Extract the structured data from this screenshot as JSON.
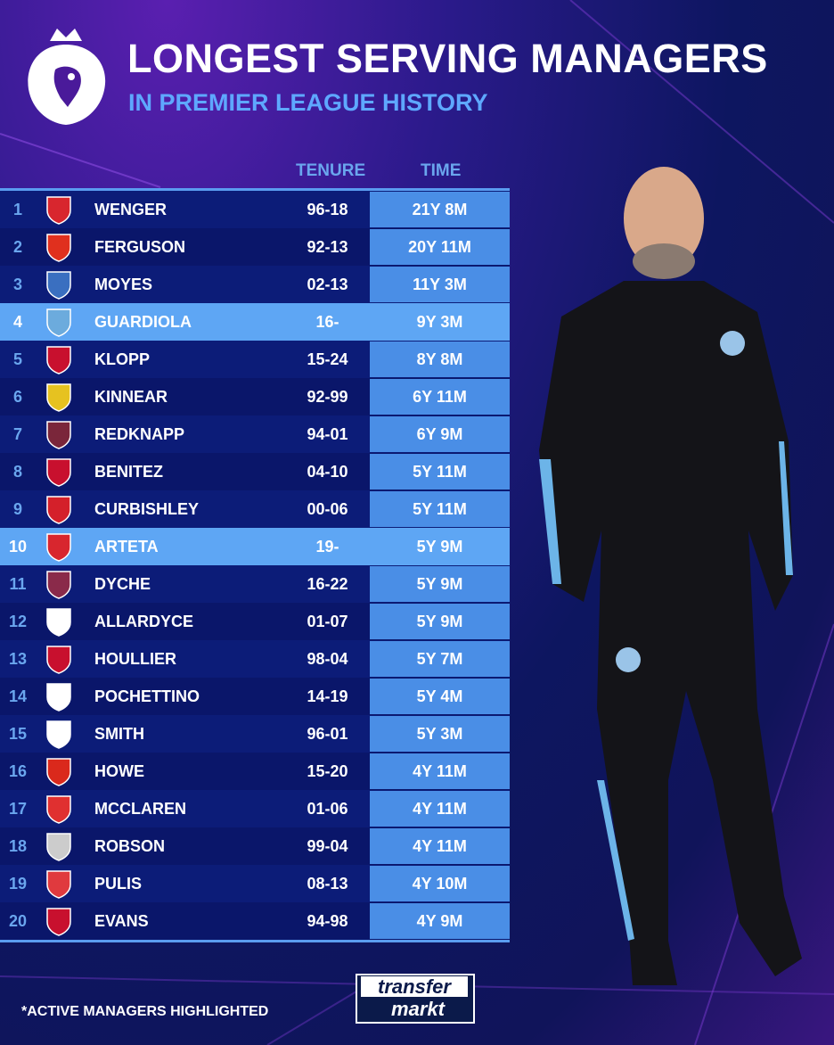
{
  "header": {
    "title": "LONGEST SERVING MANAGERS",
    "subtitle": "IN PREMIER LEAGUE HISTORY"
  },
  "columns": {
    "tenure": "TENURE",
    "time": "TIME"
  },
  "colors": {
    "accent": "#5ea8ff",
    "active_row": "#5ea6f4",
    "time_cell": "#4a8ee6",
    "row_dark": "#0c1c78"
  },
  "rows": [
    {
      "rank": "1",
      "name": "WENGER",
      "tenure": "96-18",
      "time": "21Y 8M",
      "crest": "arsenal-crest",
      "crest_color": "#d8262e",
      "active": false
    },
    {
      "rank": "2",
      "name": "FERGUSON",
      "tenure": "92-13",
      "time": "20Y 11M",
      "crest": "man-utd-crest",
      "crest_color": "#e0301e",
      "active": false
    },
    {
      "rank": "3",
      "name": "MOYES",
      "tenure": "02-13",
      "time": "11Y 3M",
      "crest": "everton-crest",
      "crest_color": "#3a6fc0",
      "active": false
    },
    {
      "rank": "4",
      "name": "GUARDIOLA",
      "tenure": "16-",
      "time": "9Y 3M",
      "crest": "man-city-crest",
      "crest_color": "#6cabdd",
      "active": true
    },
    {
      "rank": "5",
      "name": "KLOPP",
      "tenure": "15-24",
      "time": "8Y 8M",
      "crest": "liverpool-crest",
      "crest_color": "#c8102e",
      "active": false
    },
    {
      "rank": "6",
      "name": "KINNEAR",
      "tenure": "92-99",
      "time": "6Y 11M",
      "crest": "wimbledon-crest",
      "crest_color": "#e6c220",
      "active": false
    },
    {
      "rank": "7",
      "name": "REDKNAPP",
      "tenure": "94-01",
      "time": "6Y 9M",
      "crest": "west-ham-crest",
      "crest_color": "#7a263a",
      "active": false
    },
    {
      "rank": "8",
      "name": "BENITEZ",
      "tenure": "04-10",
      "time": "5Y 11M",
      "crest": "liverpool-crest",
      "crest_color": "#c8102e",
      "active": false
    },
    {
      "rank": "9",
      "name": "CURBISHLEY",
      "tenure": "00-06",
      "time": "5Y 11M",
      "crest": "charlton-crest",
      "crest_color": "#d4202a",
      "active": false
    },
    {
      "rank": "10",
      "name": "ARTETA",
      "tenure": "19-",
      "time": "5Y 9M",
      "crest": "arsenal-crest",
      "crest_color": "#d8262e",
      "active": true
    },
    {
      "rank": "11",
      "name": "DYCHE",
      "tenure": "16-22",
      "time": "5Y 9M",
      "crest": "burnley-crest",
      "crest_color": "#8a2a4a",
      "active": false
    },
    {
      "rank": "12",
      "name": "ALLARDYCE",
      "tenure": "01-07",
      "time": "5Y 9M",
      "crest": "bolton-crest",
      "crest_color": "#ffffff",
      "active": false
    },
    {
      "rank": "13",
      "name": "HOULLIER",
      "tenure": "98-04",
      "time": "5Y 7M",
      "crest": "liverpool-crest",
      "crest_color": "#c8102e",
      "active": false
    },
    {
      "rank": "14",
      "name": "POCHETTINO",
      "tenure": "14-19",
      "time": "5Y 4M",
      "crest": "tottenham-crest",
      "crest_color": "#ffffff",
      "active": false
    },
    {
      "rank": "15",
      "name": "SMITH",
      "tenure": "96-01",
      "time": "5Y 3M",
      "crest": "derby-crest",
      "crest_color": "#ffffff",
      "active": false
    },
    {
      "rank": "16",
      "name": "HOWE",
      "tenure": "15-20",
      "time": "4Y 11M",
      "crest": "bournemouth-crest",
      "crest_color": "#da291c",
      "active": false
    },
    {
      "rank": "17",
      "name": "MCCLAREN",
      "tenure": "01-06",
      "time": "4Y 11M",
      "crest": "middlesbrough-crest",
      "crest_color": "#e03030",
      "active": false
    },
    {
      "rank": "18",
      "name": "ROBSON",
      "tenure": "99-04",
      "time": "4Y 11M",
      "crest": "newcastle-crest",
      "crest_color": "#cccccc",
      "active": false
    },
    {
      "rank": "19",
      "name": "PULIS",
      "tenure": "08-13",
      "time": "4Y 10M",
      "crest": "stoke-crest",
      "crest_color": "#e03a3e",
      "active": false
    },
    {
      "rank": "20",
      "name": "EVANS",
      "tenure": "94-98",
      "time": "4Y 9M",
      "crest": "liverpool-crest",
      "crest_color": "#c8102e",
      "active": false
    }
  ],
  "footer": {
    "note": "*ACTIVE MANAGERS HIGHLIGHTED",
    "brand_line1": "transfer",
    "brand_line2": "markt"
  }
}
